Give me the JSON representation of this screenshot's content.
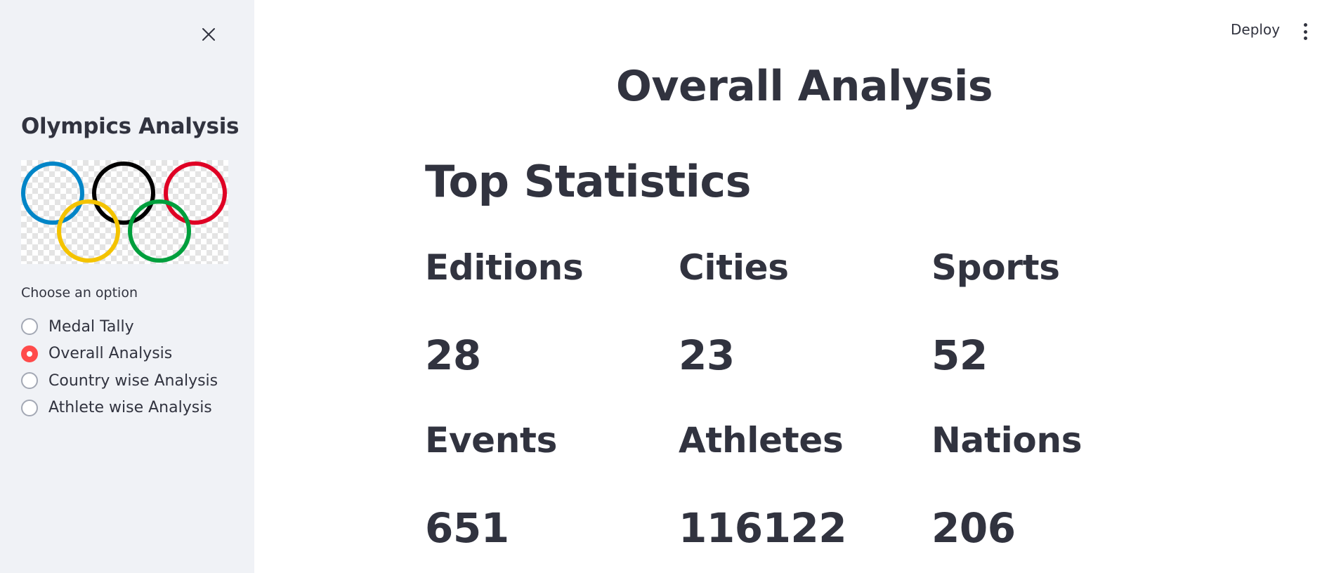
{
  "sidebar": {
    "title": "Olympics Analysis",
    "logo_name": "olympic-rings",
    "ring_colors": [
      "#0085C7",
      "#000000",
      "#DF0024",
      "#F4C300",
      "#009F3D"
    ],
    "radio_label": "Choose an option",
    "options": [
      {
        "label": "Medal Tally",
        "selected": false
      },
      {
        "label": "Overall Analysis",
        "selected": true
      },
      {
        "label": "Country wise Analysis",
        "selected": false
      },
      {
        "label": "Athlete wise Analysis",
        "selected": false
      }
    ],
    "close_icon": "close-icon"
  },
  "header": {
    "deploy_label": "Deploy",
    "menu_icon": "vertical-dots-icon"
  },
  "main": {
    "title": "Overall Analysis",
    "section_title": "Top Statistics",
    "stats": [
      {
        "label": "Editions",
        "value": "28"
      },
      {
        "label": "Cities",
        "value": "23"
      },
      {
        "label": "Sports",
        "value": "52"
      },
      {
        "label": "Events",
        "value": "651"
      },
      {
        "label": "Athletes",
        "value": "116122"
      },
      {
        "label": "Nations",
        "value": "206"
      }
    ]
  },
  "colors": {
    "accent": "#ff4b4b",
    "sidebar_bg": "#f0f2f6",
    "text": "#31333f"
  }
}
